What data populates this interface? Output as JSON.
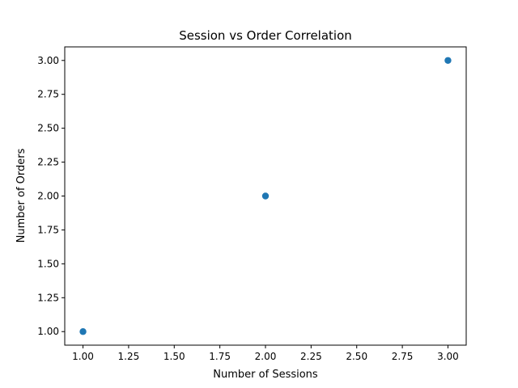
{
  "chart_data": {
    "type": "scatter",
    "title": "Session vs Order Correlation",
    "xlabel": "Number of Sessions",
    "ylabel": "Number of Orders",
    "xlim": [
      0.9,
      3.1
    ],
    "ylim": [
      0.9,
      3.1
    ],
    "xticks": [
      "1.00",
      "1.25",
      "1.50",
      "1.75",
      "2.00",
      "2.25",
      "2.50",
      "2.75",
      "3.00"
    ],
    "yticks": [
      "1.00",
      "1.25",
      "1.50",
      "1.75",
      "2.00",
      "2.25",
      "2.50",
      "2.75",
      "3.00"
    ],
    "series": [
      {
        "points": [
          {
            "x": 1,
            "y": 1
          },
          {
            "x": 2,
            "y": 2
          },
          {
            "x": 3,
            "y": 3
          }
        ],
        "color": "#1f77b4"
      }
    ],
    "grid": false
  }
}
